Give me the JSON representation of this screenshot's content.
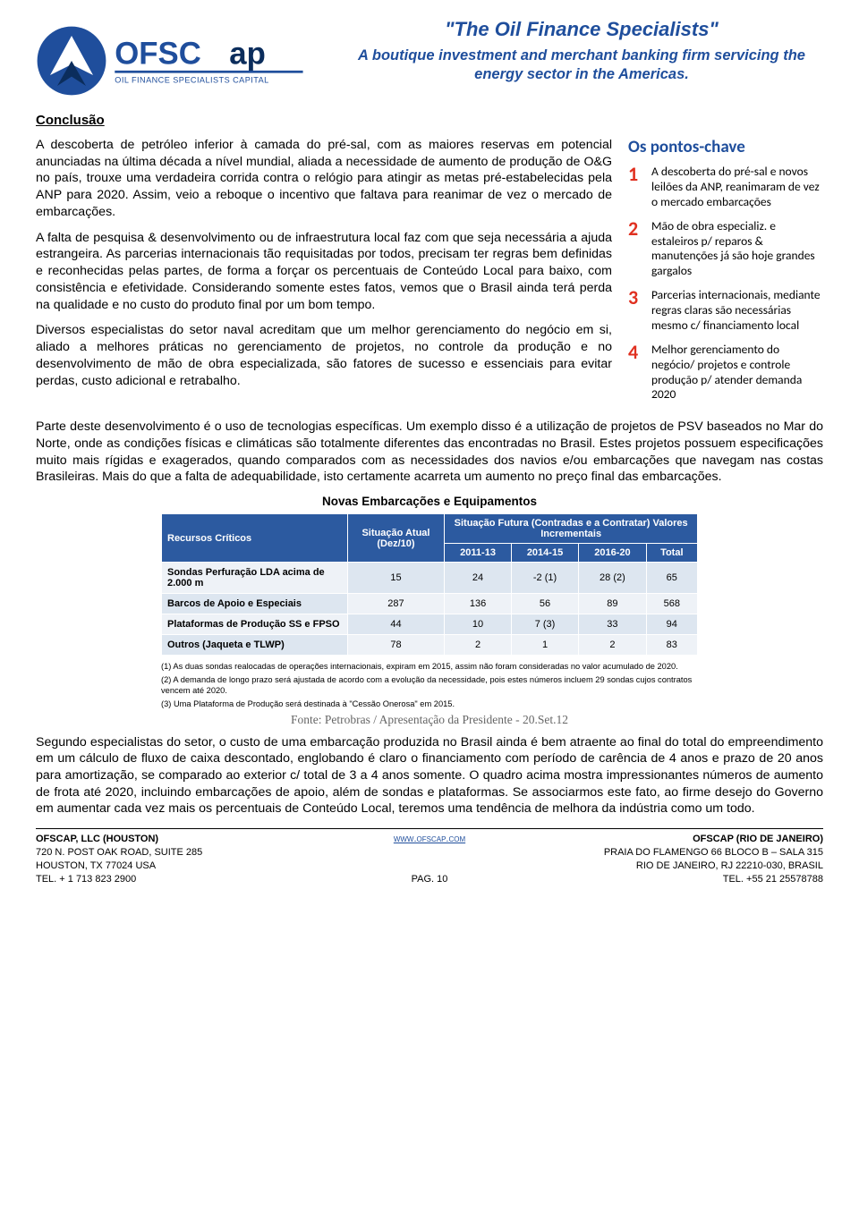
{
  "header": {
    "title": "\"The Oil Finance Specialists\"",
    "subtitle": "A boutique investment and merchant banking firm servicing the energy sector in the Americas.",
    "logo_main": "OFSCap",
    "logo_tag": "OIL FINANCE SPECIALISTS CAPITAL",
    "brand_color": "#1f4e9c"
  },
  "section_heading": "Conclusão",
  "paragraphs": {
    "p1": "A descoberta de petróleo inferior à camada do pré-sal, com as maiores reservas em potencial anunciadas na última década a nível mundial, aliada a necessidade de aumento de produção de O&G no país, trouxe uma verdadeira corrida contra o relógio para atingir as metas pré-estabelecidas pela ANP para 2020. Assim, veio a reboque o incentivo que faltava para reanimar de vez o mercado de embarcações.",
    "p2": "A falta de pesquisa & desenvolvimento ou de infraestrutura local faz com que seja necessária a ajuda estrangeira. As parcerias internacionais tão requisitadas por todos, precisam ter regras bem definidas e reconhecidas pelas partes, de forma a forçar os percentuais de Conteúdo Local para baixo, com consistência e efetividade. Considerando somente estes fatos, vemos que o Brasil ainda terá perda na qualidade e no custo do produto final por um bom tempo.",
    "p3": "Diversos especialistas do setor naval acreditam que um melhor gerenciamento do negócio em si, aliado a melhores práticas no gerenciamento de projetos, no controle da produção e no desenvolvimento de mão de obra especializada, são fatores de sucesso e essenciais para evitar perdas, custo adicional e retrabalho.",
    "p4": "Parte deste desenvolvimento é o uso de tecnologias específicas. Um exemplo disso é a utilização de projetos de PSV baseados no Mar do Norte, onde as condições físicas e climáticas são totalmente diferentes das encontradas no Brasil. Estes projetos possuem especificações muito mais rígidas e exagerados, quando comparados com as necessidades dos navios e/ou embarcações que navegam nas costas Brasileiras. Mais do que a falta de adequabilidade, isto certamente acarreta um aumento no preço final das embarcações.",
    "p5": "Segundo especialistas do setor, o custo de uma embarcação produzida no Brasil ainda é bem atraente ao final do total do empreendimento em um cálculo de fluxo de caixa descontado, englobando é claro o financiamento com período de carência de 4 anos e prazo de 20 anos para amortização, se comparado ao exterior c/ total de 3 a 4 anos somente. O quadro acima mostra impressionantes números de aumento de frota até 2020, incluindo embarcações de apoio, além de sondas e plataformas. Se associarmos este fato, ao firme desejo do Governo em aumentar cada vez mais os percentuais de Conteúdo Local, teremos uma tendência de melhora da indústria como um todo."
  },
  "keypoints": {
    "title": "Os pontos-chave",
    "num_color": "#e03020",
    "items": [
      {
        "n": "1",
        "text": "A descoberta do pré-sal e novos leilões da ANP, reanimaram de vez o mercado embarcações"
      },
      {
        "n": "2",
        "text": "Mão de obra especializ. e estaleiros p/ reparos & manutenções já são hoje grandes gargalos"
      },
      {
        "n": "3",
        "text": "Parcerias internacionais, mediante regras claras são necessárias mesmo c/ financiamento local"
      },
      {
        "n": "4",
        "text": "Melhor gerenciamento do negócio/ projetos e controle produção p/ atender demanda 2020"
      }
    ]
  },
  "table": {
    "title": "Novas Embarcações e Equipamentos",
    "header_bg": "#2c5aa0",
    "header_fg": "#ffffff",
    "row_bg": "#dde6f0",
    "row_alt_bg": "#eef2f7",
    "col_resource": "Recursos Críticos",
    "col_current": "Situação Atual (Dez/10)",
    "col_future": "Situação Futura (Contradas e a Contratar) Valores Incrementais",
    "sub_cols": [
      "2011-13",
      "2014-15",
      "2016-20",
      "Total"
    ],
    "rows": [
      {
        "label": "Sondas Perfuração LDA acima de 2.000 m",
        "c": "15",
        "v": [
          "24",
          "-2 (1)",
          "28 (2)",
          "65"
        ]
      },
      {
        "label": "Barcos de Apoio e Especiais",
        "c": "287",
        "v": [
          "136",
          "56",
          "89",
          "568"
        ]
      },
      {
        "label": "Plataformas de Produção SS e FPSO",
        "c": "44",
        "v": [
          "10",
          "7 (3)",
          "33",
          "94"
        ]
      },
      {
        "label": "Outros (Jaqueta e TLWP)",
        "c": "78",
        "v": [
          "2",
          "1",
          "2",
          "83"
        ]
      }
    ],
    "notes": [
      "(1) As duas sondas realocadas de operações internacionais, expiram em 2015, assim não foram consideradas no valor acumulado de 2020.",
      "(2) A demanda de longo prazo será ajustada de acordo com a evolução da necessidade, pois estes números incluem 29 sondas cujos contratos vencem até 2020.",
      "(3) Uma Plataforma de Produção será destinada à \"Cessão Onerosa\" em 2015."
    ],
    "source": "Fonte: Petrobras / Apresentação da Presidente - 20.Set.12"
  },
  "footer": {
    "left": [
      "OFSCAP, LLC (HOUSTON)",
      "720 N. POST OAK ROAD, SUITE 285",
      "HOUSTON, TX 77024 USA",
      "TEL. + 1 713 823 2900"
    ],
    "center_link": "www.ofscap.com",
    "center_page": "PAG. 10",
    "right": [
      "OFSCAP (RIO DE JANEIRO)",
      "PRAIA DO FLAMENGO 66 BLOCO B – SALA 315",
      "RIO DE JANEIRO, RJ 22210-030, BRASIL",
      "TEL. +55 21 25578788"
    ]
  }
}
